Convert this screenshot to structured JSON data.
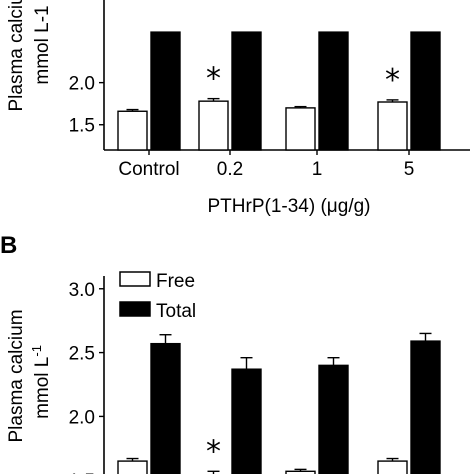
{
  "chart_data": [
    {
      "panel": "A",
      "type": "bar",
      "categories": [
        "Control",
        "0.2",
        "1",
        "5"
      ],
      "xlabel_parts": [
        "PTHrP(1-34) (",
        "μ",
        "g/g)"
      ],
      "ylabel_lines": [
        "Plasma calcium",
        "mmol L-1"
      ],
      "ylim": [
        1.2,
        3.1
      ],
      "yticks": [
        "1.5",
        "2.0"
      ],
      "ytick_values": [
        1.5,
        2.0
      ],
      "series": [
        {
          "name": "Free",
          "color": "#ffffff",
          "values": [
            1.66,
            1.78,
            1.7,
            1.77
          ],
          "errors": [
            0.02,
            0.03,
            0.015,
            0.025
          ]
        },
        {
          "name": "Total",
          "color": "#000000",
          "values": [
            2.6,
            2.6,
            2.6,
            2.6
          ],
          "errors": [
            0,
            0,
            0,
            0
          ]
        }
      ],
      "significance": [
        false,
        true,
        false,
        true
      ],
      "significance_marker": "*"
    },
    {
      "panel": "B",
      "type": "bar",
      "categories": [
        "Control",
        "0.2",
        "1",
        "5"
      ],
      "ylabel_lines": [
        "Plasma calcium",
        "mmol L",
        "-1"
      ],
      "ylim": [
        1.4,
        3.1
      ],
      "yticks": [
        "1.5",
        "2.0",
        "2.5",
        "3.0"
      ],
      "ytick_values": [
        1.5,
        2.0,
        2.5,
        3.0
      ],
      "legend": {
        "position": "top-left",
        "entries": [
          "Free",
          "Total"
        ]
      },
      "series": [
        {
          "name": "Free",
          "color": "#ffffff",
          "values": [
            1.65,
            1.54,
            1.57,
            1.65
          ],
          "errors": [
            0.02,
            0.03,
            0.015,
            0.02
          ]
        },
        {
          "name": "Total",
          "color": "#000000",
          "values": [
            2.57,
            2.37,
            2.4,
            2.59
          ],
          "errors": [
            0.07,
            0.09,
            0.06,
            0.06
          ]
        }
      ],
      "significance": [
        false,
        true,
        false,
        false
      ],
      "significance_marker": "*"
    }
  ]
}
